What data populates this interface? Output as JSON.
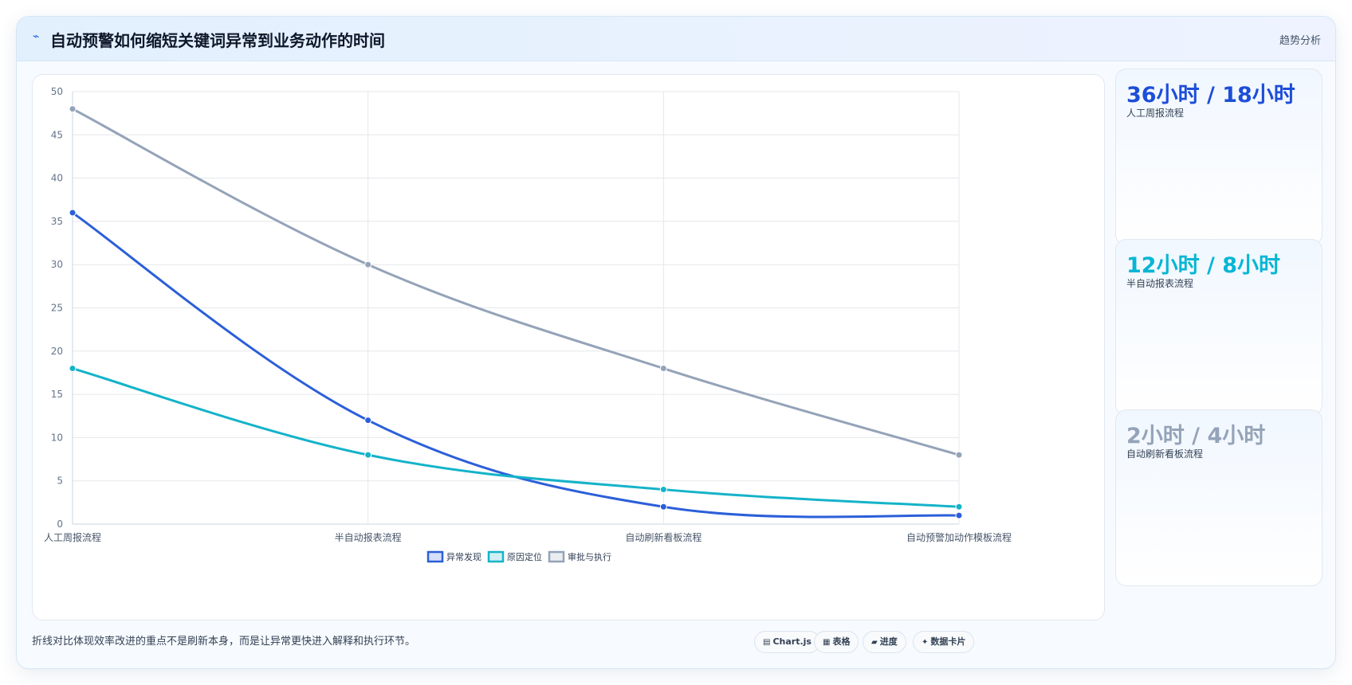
{
  "header": {
    "title": "自动预警如何缩短关键词异常到业务动作的时间",
    "tag": "趋势分析"
  },
  "side_cards": [
    {
      "value": "36小时 / 18小时",
      "label": "人工周报流程",
      "color": "#1d4ed8"
    },
    {
      "value": "12小时 / 8小时",
      "label": "半自动报表流程",
      "color": "#06b6d4"
    },
    {
      "value": "2小时 / 4小时",
      "label": "自动刷新看板流程",
      "color": "#94a3b8"
    }
  ],
  "footer": {
    "note": "折线对比体现效率改进的重点不是刷新本身，而是让异常更快进入解释和执行环节。",
    "pills": [
      {
        "icon": "chart-icon",
        "label": "Chart.js"
      },
      {
        "icon": "table-icon",
        "label": "表格"
      },
      {
        "icon": "progress-icon",
        "label": "进度"
      },
      {
        "icon": "sparkle-icon",
        "label": "数据卡片"
      }
    ]
  },
  "chart_data": {
    "type": "line",
    "categories": [
      "人工周报流程",
      "半自动报表流程",
      "自动刷新看板流程",
      "自动预警加动作模板流程"
    ],
    "series": [
      {
        "name": "异常发现",
        "values": [
          36,
          12,
          2,
          1
        ],
        "color": "#2b5fd9"
      },
      {
        "name": "原因定位",
        "values": [
          18,
          8,
          4,
          2
        ],
        "color": "#14b3c9"
      },
      {
        "name": "审批与执行",
        "values": [
          48,
          30,
          18,
          8
        ],
        "color": "#94a3b8"
      }
    ],
    "yticks": [
      "0",
      "5",
      "10",
      "15",
      "20",
      "25",
      "30",
      "35",
      "40",
      "45",
      "50"
    ],
    "ylim": [
      0,
      50
    ],
    "grid": true,
    "legend": "bottom"
  }
}
